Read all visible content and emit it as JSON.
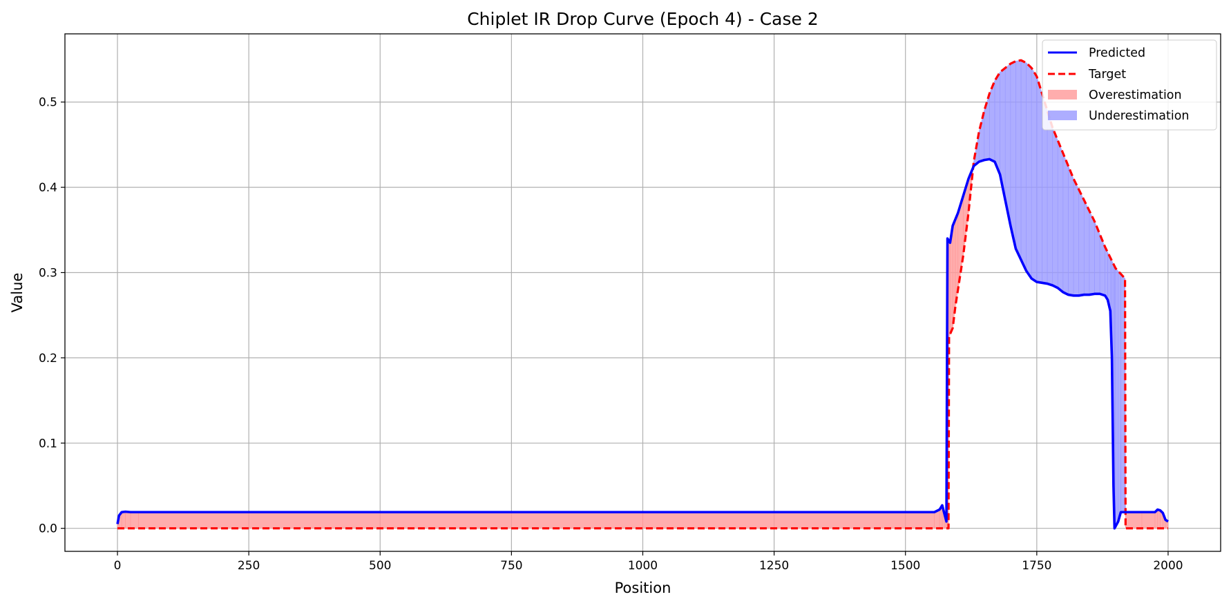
{
  "chart_data": {
    "type": "line",
    "title": "Chiplet IR Drop Curve (Epoch 4) - Case 2",
    "xlabel": "Position",
    "ylabel": "Value",
    "xlim": [
      -100,
      2100
    ],
    "ylim": [
      -0.027,
      0.58
    ],
    "xticks": [
      0,
      250,
      500,
      750,
      1000,
      1250,
      1500,
      1750,
      2000
    ],
    "xtick_labels": [
      "0",
      "250",
      "500",
      "750",
      "1000",
      "1250",
      "1500",
      "1750",
      "2000"
    ],
    "yticks": [
      0.0,
      0.1,
      0.2,
      0.3,
      0.4,
      0.5
    ],
    "ytick_labels": [
      "0.0",
      "0.1",
      "0.2",
      "0.3",
      "0.4",
      "0.5"
    ],
    "grid": true,
    "legend_position": "top-right",
    "colors": {
      "predicted": "#0000ff",
      "target": "#ff0000",
      "overestimation": "#ff9999",
      "underestimation": "#9999ff",
      "grid": "#b0b0b0"
    },
    "series": [
      {
        "name": "Predicted",
        "style": "solid",
        "points": [
          [
            0,
            0.005
          ],
          [
            3,
            0.015
          ],
          [
            8,
            0.019
          ],
          [
            15,
            0.0195
          ],
          [
            25,
            0.019
          ],
          [
            40,
            0.019
          ],
          [
            1000,
            0.019
          ],
          [
            1555,
            0.019
          ],
          [
            1565,
            0.022
          ],
          [
            1570,
            0.027
          ],
          [
            1575,
            0.015
          ],
          [
            1578,
            0.008
          ],
          [
            1580,
            0.34
          ],
          [
            1585,
            0.335
          ],
          [
            1590,
            0.355
          ],
          [
            1600,
            0.37
          ],
          [
            1610,
            0.39
          ],
          [
            1620,
            0.41
          ],
          [
            1630,
            0.425
          ],
          [
            1640,
            0.43
          ],
          [
            1650,
            0.432
          ],
          [
            1660,
            0.433
          ],
          [
            1670,
            0.43
          ],
          [
            1680,
            0.415
          ],
          [
            1690,
            0.385
          ],
          [
            1700,
            0.355
          ],
          [
            1710,
            0.328
          ],
          [
            1720,
            0.315
          ],
          [
            1730,
            0.302
          ],
          [
            1740,
            0.293
          ],
          [
            1750,
            0.289
          ],
          [
            1760,
            0.288
          ],
          [
            1770,
            0.287
          ],
          [
            1780,
            0.285
          ],
          [
            1790,
            0.282
          ],
          [
            1800,
            0.277
          ],
          [
            1810,
            0.274
          ],
          [
            1820,
            0.273
          ],
          [
            1830,
            0.273
          ],
          [
            1840,
            0.274
          ],
          [
            1850,
            0.274
          ],
          [
            1860,
            0.275
          ],
          [
            1870,
            0.275
          ],
          [
            1880,
            0.273
          ],
          [
            1885,
            0.268
          ],
          [
            1890,
            0.255
          ],
          [
            1893,
            0.2
          ],
          [
            1896,
            0.05
          ],
          [
            1898,
            0.0
          ],
          [
            1905,
            0.008
          ],
          [
            1910,
            0.019
          ],
          [
            1950,
            0.019
          ],
          [
            1975,
            0.019
          ],
          [
            1980,
            0.022
          ],
          [
            1985,
            0.021
          ],
          [
            1990,
            0.018
          ],
          [
            1995,
            0.01
          ],
          [
            2000,
            0.008
          ]
        ]
      },
      {
        "name": "Target",
        "style": "dashed",
        "points": [
          [
            0,
            0.0
          ],
          [
            1582,
            0.0
          ],
          [
            1583,
            0.225
          ],
          [
            1590,
            0.235
          ],
          [
            1595,
            0.26
          ],
          [
            1600,
            0.28
          ],
          [
            1610,
            0.32
          ],
          [
            1620,
            0.37
          ],
          [
            1630,
            0.43
          ],
          [
            1640,
            0.465
          ],
          [
            1650,
            0.49
          ],
          [
            1660,
            0.51
          ],
          [
            1670,
            0.525
          ],
          [
            1680,
            0.535
          ],
          [
            1690,
            0.54
          ],
          [
            1700,
            0.545
          ],
          [
            1710,
            0.548
          ],
          [
            1720,
            0.549
          ],
          [
            1730,
            0.546
          ],
          [
            1740,
            0.54
          ],
          [
            1750,
            0.53
          ],
          [
            1760,
            0.51
          ],
          [
            1780,
            0.47
          ],
          [
            1800,
            0.44
          ],
          [
            1820,
            0.41
          ],
          [
            1840,
            0.385
          ],
          [
            1860,
            0.36
          ],
          [
            1880,
            0.33
          ],
          [
            1900,
            0.305
          ],
          [
            1918,
            0.293
          ],
          [
            1919,
            0.0
          ],
          [
            2000,
            0.0
          ]
        ]
      }
    ],
    "fill_legend": [
      {
        "name": "Overestimation"
      },
      {
        "name": "Underestimation"
      }
    ]
  }
}
